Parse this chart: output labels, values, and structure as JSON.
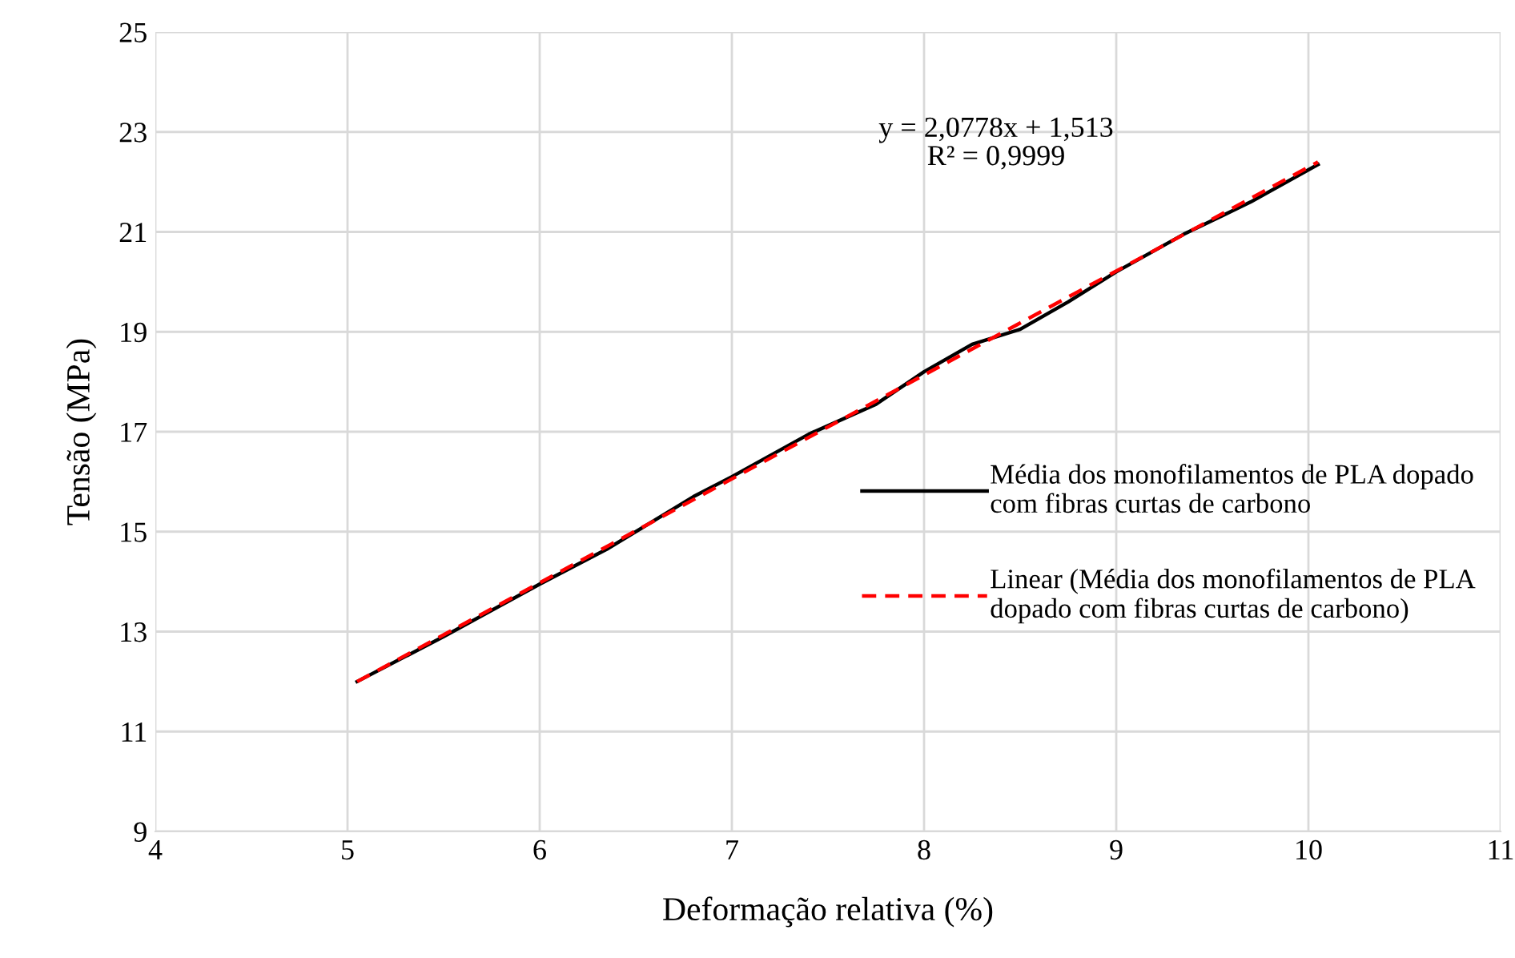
{
  "chart_data": {
    "type": "line",
    "xlabel": "Deformação relativa (%)",
    "ylabel": "Tensão (MPa)",
    "xlim": [
      4,
      11
    ],
    "xticks": [
      4,
      5,
      6,
      7,
      8,
      9,
      10,
      11
    ],
    "ylim": [
      9,
      25
    ],
    "yticks": [
      9,
      11,
      13,
      15,
      17,
      19,
      21,
      23,
      25
    ],
    "grid": true,
    "legend": "right",
    "marker": "none",
    "annotations": [
      "y = 2,0778x + 1,513\nR² = 0,9999"
    ],
    "series": [
      {
        "name": "Média dos monofilamentos de PLA dopado\ncom fibras curtas de carbono",
        "color": "#000000",
        "line_style": "solid",
        "x": [
          5.05,
          5.5,
          6.0,
          6.35,
          6.8,
          7.0,
          7.4,
          7.75,
          8.0,
          8.25,
          8.5,
          8.75,
          9.0,
          9.35,
          9.7,
          10.05
        ],
        "values": [
          12.0,
          12.9,
          13.95,
          14.65,
          15.7,
          16.1,
          16.95,
          17.55,
          18.2,
          18.75,
          19.05,
          19.6,
          20.2,
          20.95,
          21.6,
          22.35
        ]
      },
      {
        "name": "Linear (Média dos monofilamentos de PLA\ndopado com fibras curtas de carbono)",
        "color": "#ff0000",
        "line_style": "dashed",
        "x": [
          5.05,
          10.05
        ],
        "values": [
          12.0,
          22.4
        ]
      }
    ]
  }
}
